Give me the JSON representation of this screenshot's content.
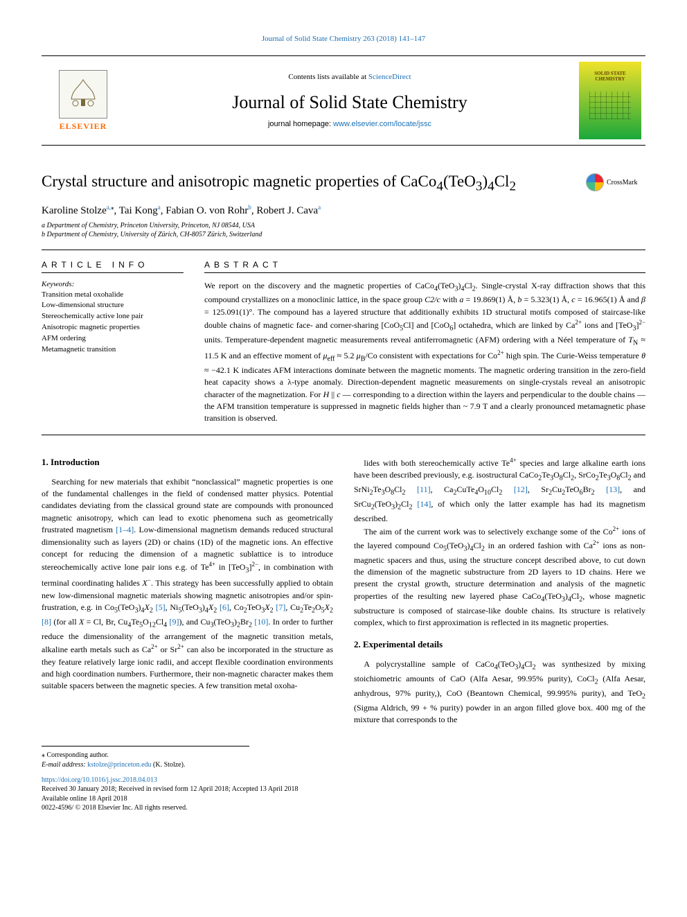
{
  "colors": {
    "link": "#1a6fb5",
    "orange": "#ff6a00",
    "text": "#000000",
    "background": "#ffffff",
    "cover_top": "#f0e22a",
    "cover_bottom": "#1aa83a"
  },
  "typography": {
    "body_family": "Georgia, 'Times New Roman', serif",
    "title_pt": 23,
    "journal_name_pt": 26,
    "abstract_pt": 12,
    "keywords_pt": 11,
    "footnote_pt": 10
  },
  "header": {
    "top_citation": "Journal of Solid State Chemistry 263 (2018) 141–147",
    "sciencedirect_prefix": "Contents lists available at ",
    "sciencedirect_link": "ScienceDirect",
    "journal_name": "Journal of Solid State Chemistry",
    "homepage_label": "journal homepage: ",
    "homepage_url": "www.elsevier.com/locate/jssc",
    "publisher_name": "ELSEVIER",
    "cover_text": "SOLID STATE CHEMISTRY",
    "crossmark": "CrossMark"
  },
  "article": {
    "title_html": "Crystal structure and anisotropic magnetic properties of CaCo<sub>4</sub>(TeO<sub>3</sub>)<sub>4</sub>Cl<sub>2</sub>",
    "authors_html": "Karoline Stolze<a class='ref'><sup>a,</sup></a><sup>⁎</sup>, Tai Kong<a class='ref'><sup>a</sup></a>, Fabian O. von Rohr<a class='ref'><sup>b</sup></a>, Robert J. Cava<a class='ref'><sup>a</sup></a>",
    "affiliations": [
      "a Department of Chemistry, Princeton University, Princeton, NJ 08544, USA",
      "b Department of Chemistry, University of Zürich, CH-8057 Zürich, Switzerland"
    ]
  },
  "sections": {
    "article_info_head": "ARTICLE INFO",
    "abstract_head": "ABSTRACT",
    "keywords_label": "Keywords:",
    "keywords": [
      "Transition metal oxohalide",
      "Low-dimensional structure",
      "Stereochemically active lone pair",
      "Anisotropic magnetic properties",
      "AFM ordering",
      "Metamagnetic transition"
    ],
    "abstract_html": "We report on the discovery and the magnetic properties of CaCo<sub>4</sub>(TeO<sub>3</sub>)<sub>4</sub>Cl<sub>2</sub>. Single-crystal X-ray diffraction shows that this compound crystallizes on a monoclinic lattice, in the space group <i>C2/c</i> with <i>a</i> = 19.869(1) Å, <i>b</i> = 5.323(1) Å, <i>c</i> = 16.965(1) Å and <i>β</i> = 125.091(1)°. The compound has a layered structure that additionally exhibits 1D structural motifs composed of staircase-like double chains of magnetic face- and corner-sharing [CoO<sub>5</sub>Cl] and [CoO<sub>6</sub>] octahedra, which are linked by Ca<sup>2+</sup> ions and [TeO<sub>3</sub>]<sup>2−</sup> units. Temperature-dependent magnetic measurements reveal antiferromagnetic (AFM) ordering with a Néel temperature of <i>T</i><sub>N</sub> ≈ 11.5 K and an effective moment of <i>μ</i><sub>eff</sub> ≈ 5.2 <i>μ</i><sub>B</sub>/Co consistent with expectations for Co<sup>2+</sup> high spin. The Curie-Weiss temperature <i>θ</i> ≈ −42.1 K indicates AFM interactions dominate between the magnetic moments. The magnetic ordering transition in the zero-field heat capacity shows a λ-type anomaly. Direction-dependent magnetic measurements on single-crystals reveal an anisotropic character of the magnetization. For <i>H</i> || <i>c</i> — corresponding to a direction within the layers and perpendicular to the double chains — the AFM transition temperature is suppressed in magnetic fields higher than ~ 7.9 T and a clearly pronounced metamagnetic phase transition is observed."
  },
  "body": {
    "intro_head": "1.  Introduction",
    "intro_p1_html": "Searching for new materials that exhibit “nonclassical” magnetic properties is one of the fundamental challenges in the field of condensed matter physics. Potential candidates deviating from the classical ground state are compounds with pronounced magnetic anisotropy, which can lead to exotic phenomena such as geometrically frustrated magnetism <a class='ref'>[1–4]</a>. Low-dimensional magnetism demands reduced structural dimensionality such as layers (2D) or chains (1D) of the magnetic ions. An effective concept for reducing the dimension of a magnetic sublattice is to introduce stereochemically active lone pair ions e.g. of Te<sup>4+</sup> in [TeO<sub>3</sub>]<sup>2−</sup>, in combination with terminal coordinating halides <i>X</i><sup>−</sup>. This strategy has been successfully applied to obtain new low-dimensional magnetic materials showing magnetic anisotropies and/or spin-frustration, e.g. in Co<sub>5</sub>(TeO<sub>3</sub>)<sub>4</sub><i>X</i><sub>2</sub> <a class='ref'>[5]</a>, Ni<sub>5</sub>(TeO<sub>3</sub>)<sub>4</sub><i>X</i><sub>2</sub> <a class='ref'>[6]</a>, Co<sub>2</sub>TeO<sub>3</sub><i>X</i><sub>2</sub> <a class='ref'>[7]</a>, Cu<sub>2</sub>Te<sub>2</sub>O<sub>5</sub><i>X</i><sub>2</sub> <a class='ref'>[8]</a> (for all <i>X</i> = Cl, Br, Cu<sub>4</sub>Te<sub>5</sub>O<sub>12</sub>Cl<sub>4</sub> <a class='ref'>[9]</a>), and Cu<sub>3</sub>(TeO<sub>3</sub>)<sub>2</sub>Br<sub>2</sub> <a class='ref'>[10]</a>. In order to further reduce the dimensionality of the arrangement of the magnetic transition metals, alkaline earth metals such as Ca<sup>2+</sup> or Sr<sup>2+</sup> can also be incorporated in the structure as they feature relatively large ionic radii, and accept flexible coordination environments and high coordination numbers. Furthermore, their non-magnetic character makes them suitable spacers between the magnetic species. A few transition metal oxoha-",
    "right_p1_html": "lides with both stereochemically active Te<sup>4+</sup> species and large alkaline earth ions have been described previously, e.g. isostructural CaCo<sub>2</sub>Te<sub>3</sub>O<sub>8</sub>Cl<sub>2</sub>, SrCo<sub>2</sub>Te<sub>3</sub>O<sub>8</sub>Cl<sub>2</sub> and SrNi<sub>2</sub>Te<sub>3</sub>O<sub>8</sub>Cl<sub>2</sub> <a class='ref'>[11]</a>, Ca<sub>2</sub>CuTe<sub>4</sub>O<sub>10</sub>Cl<sub>2</sub> <a class='ref'>[12]</a>, Sr<sub>2</sub>Cu<sub>2</sub>TeO<sub>6</sub>Br<sub>2</sub> <a class='ref'>[13]</a>, and SrCu<sub>2</sub>(TeO<sub>3</sub>)<sub>2</sub>Cl<sub>2</sub> <a class='ref'>[14]</a>, of which only the latter example has had its magnetism described.",
    "right_p2_html": "The aim of the current work was to selectively exchange some of the Co<sup>2+</sup> ions of the layered compound Co<sub>5</sub>(TeO<sub>3</sub>)<sub>4</sub>Cl<sub>2</sub> in an ordered fashion with Ca<sup>2+</sup> ions as non-magnetic spacers and thus, using the structure concept described above, to cut down the dimension of the magnetic substructure from 2D layers to 1D chains. Here we present the crystal growth, structure determination and analysis of the magnetic properties of the resulting new layered phase CaCo<sub>4</sub>(TeO<sub>3</sub>)<sub>4</sub>Cl<sub>2</sub>, whose magnetic substructure is composed of staircase-like double chains. Its structure is relatively complex, which to first approximation is reflected in its magnetic properties.",
    "exp_head": "2.  Experimental details",
    "exp_p1_html": "A polycrystalline sample of CaCo<sub>4</sub>(TeO<sub>3</sub>)<sub>4</sub>Cl<sub>2</sub> was synthesized by mixing stoichiometric amounts of CaO (Alfa Aesar, 99.95% purity), CoCl<sub>2</sub> (Alfa Aesar, anhydrous, 97% purity,), CoO (Beantown Chemical, 99.995% purity), and TeO<sub>2</sub> (Sigma Aldrich, 99 + % purity) powder in an argon filled glove box. 400 mg of the mixture that corresponds to the"
  },
  "footer": {
    "corr_marker": "⁎ Corresponding author.",
    "email_label": "E-mail address: ",
    "email": "kstolze@princeton.edu",
    "email_name": " (K. Stolze).",
    "doi": "https://doi.org/10.1016/j.jssc.2018.04.013",
    "received": "Received 30 January 2018; Received in revised form 12 April 2018; Accepted 13 April 2018",
    "available": "Available online 18 April 2018",
    "copyright": "0022-4596/ © 2018 Elsevier Inc. All rights reserved."
  }
}
